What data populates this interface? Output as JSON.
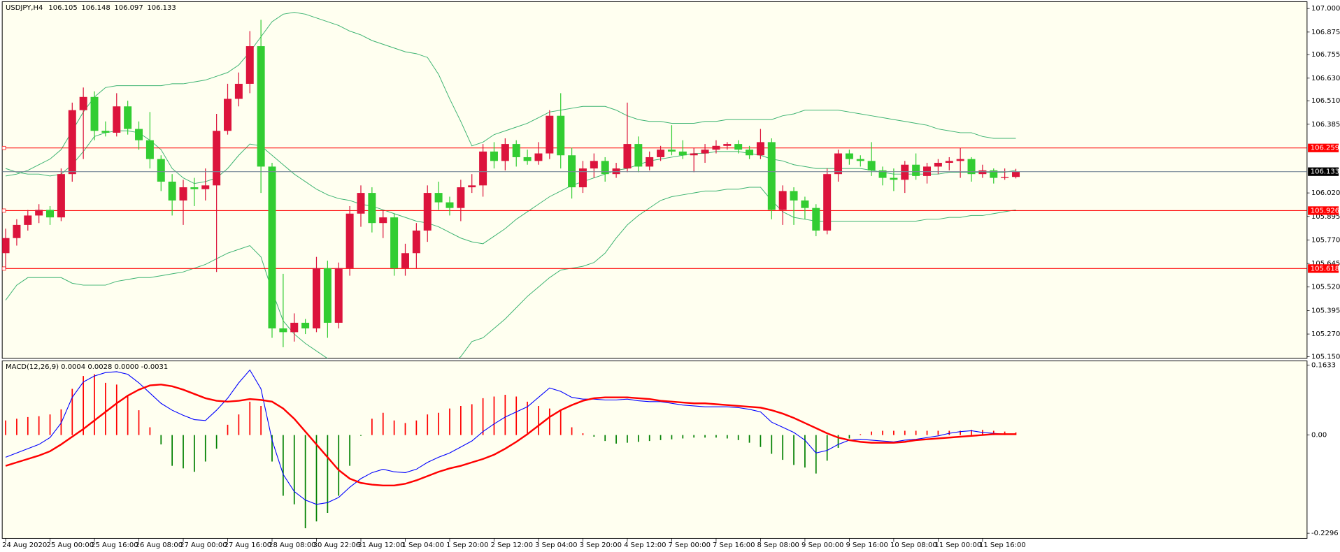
{
  "chart_data": {
    "type": "candlestick",
    "title": "USDJPY,H4",
    "categories": [
      "24 Aug 2020",
      null,
      null,
      null,
      "25 Aug 00:00",
      null,
      null,
      null,
      "25 Aug 16:00",
      null,
      null,
      null,
      "26 Aug 08:00",
      null,
      null,
      null,
      "27 Aug 00:00",
      null,
      null,
      null,
      "27 Aug 16:00",
      null,
      null,
      null,
      "28 Aug 08:00",
      null,
      null,
      null,
      "30 Aug 22:06",
      null,
      null,
      null,
      "31 Aug 12:00",
      null,
      null,
      null,
      "1 Sep 04:00",
      null,
      null,
      null,
      "1 Sep 20:00",
      null,
      null,
      null,
      "2 Sep 12:00",
      null,
      null,
      null,
      "3 Sep 04:00",
      null,
      null,
      null,
      "3 Sep 20:00",
      null,
      null,
      null,
      "4 Sep 12:00",
      null,
      null,
      null,
      "7 Sep 00:00",
      null,
      null,
      null,
      "7 Sep 16:00",
      null,
      null,
      null,
      "8 Sep 08:00",
      null,
      null,
      null,
      "9 Sep 00:00",
      null,
      null,
      null,
      "9 Sep 16:00",
      null,
      null,
      null,
      "10 Sep 08:00",
      null,
      null,
      null,
      "11 Sep 00:00",
      null,
      null,
      null,
      "11 Sep 16:00",
      null,
      null,
      null
    ],
    "ohlc": [
      [
        105.7,
        105.83,
        105.62,
        105.78
      ],
      [
        105.78,
        105.88,
        105.74,
        105.85
      ],
      [
        105.85,
        105.93,
        105.82,
        105.9
      ],
      [
        105.9,
        105.96,
        105.86,
        105.93
      ],
      [
        105.93,
        105.95,
        105.85,
        105.89
      ],
      [
        105.89,
        106.15,
        105.87,
        106.12
      ],
      [
        106.12,
        106.5,
        106.08,
        106.46
      ],
      [
        106.46,
        106.58,
        106.2,
        106.53
      ],
      [
        106.53,
        106.56,
        106.3,
        106.35
      ],
      [
        106.35,
        106.4,
        106.32,
        106.34
      ],
      [
        106.34,
        106.55,
        106.32,
        106.48
      ],
      [
        106.48,
        106.51,
        106.33,
        106.36
      ],
      [
        106.36,
        106.4,
        106.25,
        106.3
      ],
      [
        106.3,
        106.45,
        106.15,
        106.2
      ],
      [
        106.2,
        106.22,
        106.03,
        106.08
      ],
      [
        106.08,
        106.12,
        105.9,
        105.98
      ],
      [
        105.98,
        106.09,
        105.85,
        106.05
      ],
      [
        106.05,
        106.1,
        105.95,
        106.04
      ],
      [
        106.04,
        106.15,
        105.98,
        106.06
      ],
      [
        106.06,
        106.44,
        105.6,
        106.35
      ],
      [
        106.35,
        106.6,
        106.33,
        106.52
      ],
      [
        106.52,
        106.66,
        106.48,
        106.6
      ],
      [
        106.6,
        106.88,
        106.55,
        106.8
      ],
      [
        106.8,
        106.94,
        106.02,
        106.16
      ],
      [
        106.16,
        106.18,
        105.25,
        105.3
      ],
      [
        105.3,
        105.59,
        105.2,
        105.28
      ],
      [
        105.28,
        105.38,
        105.23,
        105.33
      ],
      [
        105.33,
        105.35,
        105.27,
        105.3
      ],
      [
        105.3,
        105.68,
        105.28,
        105.62
      ],
      [
        105.62,
        105.66,
        105.25,
        105.33
      ],
      [
        105.33,
        105.65,
        105.3,
        105.62
      ],
      [
        105.62,
        105.95,
        105.58,
        105.91
      ],
      [
        105.91,
        106.06,
        105.84,
        106.02
      ],
      [
        106.02,
        106.05,
        105.81,
        105.86
      ],
      [
        105.86,
        105.93,
        105.78,
        105.89
      ],
      [
        105.89,
        105.91,
        105.58,
        105.62
      ],
      [
        105.62,
        105.75,
        105.58,
        105.7
      ],
      [
        105.7,
        105.86,
        105.62,
        105.82
      ],
      [
        105.82,
        106.06,
        105.76,
        106.02
      ],
      [
        106.02,
        106.08,
        105.93,
        105.97
      ],
      [
        105.97,
        106.0,
        105.9,
        105.94
      ],
      [
        105.94,
        106.09,
        105.87,
        106.05
      ],
      [
        106.05,
        106.12,
        106.02,
        106.06
      ],
      [
        106.06,
        106.28,
        106.0,
        106.24
      ],
      [
        106.24,
        106.29,
        106.15,
        106.19
      ],
      [
        106.19,
        106.31,
        106.14,
        106.28
      ],
      [
        106.28,
        106.3,
        106.16,
        106.21
      ],
      [
        106.21,
        106.25,
        106.17,
        106.19
      ],
      [
        106.19,
        106.29,
        106.17,
        106.23
      ],
      [
        106.23,
        106.46,
        106.2,
        106.43
      ],
      [
        106.43,
        106.55,
        106.15,
        106.22
      ],
      [
        106.22,
        106.26,
        105.99,
        106.05
      ],
      [
        106.05,
        106.19,
        106.02,
        106.15
      ],
      [
        106.15,
        106.23,
        106.1,
        106.19
      ],
      [
        106.19,
        106.21,
        106.08,
        106.12
      ],
      [
        106.12,
        106.18,
        106.1,
        106.15
      ],
      [
        106.15,
        106.5,
        106.13,
        106.28
      ],
      [
        106.28,
        106.32,
        106.13,
        106.16
      ],
      [
        106.16,
        106.24,
        106.14,
        106.21
      ],
      [
        106.21,
        106.27,
        106.19,
        106.25
      ],
      [
        106.25,
        106.38,
        106.22,
        106.24
      ],
      [
        106.24,
        106.3,
        106.2,
        106.22
      ],
      [
        106.22,
        106.26,
        106.13,
        106.23
      ],
      [
        106.23,
        106.28,
        106.18,
        106.25
      ],
      [
        106.25,
        106.3,
        106.23,
        106.27
      ],
      [
        106.27,
        106.29,
        106.25,
        106.28
      ],
      [
        106.28,
        106.3,
        106.23,
        106.25
      ],
      [
        106.25,
        106.27,
        106.2,
        106.22
      ],
      [
        106.22,
        106.36,
        106.2,
        106.29
      ],
      [
        106.29,
        106.31,
        105.88,
        105.93
      ],
      [
        105.93,
        106.06,
        105.85,
        106.03
      ],
      [
        106.03,
        106.05,
        105.85,
        105.98
      ],
      [
        105.98,
        106.0,
        105.88,
        105.94
      ],
      [
        105.94,
        105.96,
        105.79,
        105.82
      ],
      [
        105.82,
        106.15,
        105.8,
        106.12
      ],
      [
        106.12,
        106.25,
        106.08,
        106.23
      ],
      [
        106.23,
        106.25,
        106.17,
        106.2
      ],
      [
        106.2,
        106.22,
        106.16,
        106.19
      ],
      [
        106.19,
        106.29,
        106.11,
        106.14
      ],
      [
        106.14,
        106.16,
        106.06,
        106.1
      ],
      [
        106.1,
        106.15,
        106.03,
        106.09
      ],
      [
        106.09,
        106.19,
        106.02,
        106.17
      ],
      [
        106.17,
        106.23,
        106.09,
        106.11
      ],
      [
        106.11,
        106.18,
        106.07,
        106.16
      ],
      [
        106.16,
        106.2,
        106.12,
        106.18
      ],
      [
        106.18,
        106.21,
        106.14,
        106.19
      ],
      [
        106.19,
        106.26,
        106.1,
        106.2
      ],
      [
        106.2,
        106.21,
        106.08,
        106.12
      ],
      [
        106.12,
        106.17,
        106.1,
        106.14
      ],
      [
        106.14,
        106.15,
        106.07,
        106.1
      ],
      [
        106.1,
        106.15,
        106.09,
        106.105
      ],
      [
        106.105,
        106.148,
        106.097,
        106.133
      ]
    ],
    "up_color": "#dc143c",
    "down_color": "#32cd32",
    "ylim": [
      105.15,
      107.0
    ],
    "yticks": [
      {
        "value": 107.0,
        "label": "107.000"
      },
      106.875,
      106.755,
      {
        "value": 106.63,
        "label": "106.630"
      },
      {
        "value": 106.51,
        "label": "106.510"
      },
      106.385,
      {
        "value": 106.02,
        "label": "106.020"
      },
      105.895,
      {
        "value": 105.77,
        "label": "105.770"
      },
      105.645,
      {
        "value": 105.52,
        "label": "105.520"
      },
      105.395,
      {
        "value": 105.27,
        "label": "105.270"
      },
      {
        "value": 105.15,
        "label": "105.150"
      }
    ],
    "bands": {
      "color": "#3cb371",
      "upper": [
        106.11,
        106.12,
        106.14,
        106.17,
        106.2,
        106.25,
        106.35,
        106.45,
        106.53,
        106.58,
        106.59,
        106.59,
        106.59,
        106.59,
        106.59,
        106.6,
        106.6,
        106.61,
        106.62,
        106.64,
        106.66,
        106.7,
        106.77,
        106.85,
        106.93,
        106.97,
        106.98,
        106.97,
        106.95,
        106.93,
        106.91,
        106.88,
        106.86,
        106.83,
        106.81,
        106.79,
        106.77,
        106.76,
        106.74,
        106.65,
        106.52,
        106.4,
        106.27,
        106.29,
        106.33,
        106.35,
        106.37,
        106.39,
        106.42,
        106.45,
        106.46,
        106.47,
        106.48,
        106.48,
        106.48,
        106.46,
        106.43,
        106.41,
        106.4,
        106.4,
        106.39,
        106.39,
        106.39,
        106.4,
        106.4,
        106.41,
        106.41,
        106.41,
        106.41,
        106.41,
        106.43,
        106.44,
        106.46,
        106.46,
        106.46,
        106.46,
        106.45,
        106.44,
        106.43,
        106.42,
        106.41,
        106.4,
        106.39,
        106.38,
        106.36,
        106.35,
        106.34,
        106.34,
        106.32,
        106.31,
        106.31,
        106.31
      ],
      "middle": [
        106.15,
        106.13,
        106.12,
        106.12,
        106.11,
        106.12,
        106.17,
        106.24,
        106.32,
        106.34,
        106.35,
        106.35,
        106.34,
        106.3,
        106.25,
        106.15,
        106.1,
        106.07,
        106.08,
        106.1,
        106.15,
        106.22,
        106.28,
        106.27,
        106.22,
        106.17,
        106.12,
        106.08,
        106.04,
        106.01,
        105.99,
        105.98,
        105.96,
        105.95,
        105.93,
        105.91,
        105.89,
        105.87,
        105.86,
        105.84,
        105.81,
        105.78,
        105.76,
        105.75,
        105.79,
        105.83,
        105.88,
        105.92,
        105.96,
        106.0,
        106.03,
        106.06,
        106.08,
        106.1,
        106.12,
        106.14,
        106.15,
        106.17,
        106.19,
        106.2,
        106.21,
        106.22,
        106.23,
        106.23,
        106.24,
        106.24,
        106.24,
        106.23,
        106.22,
        106.2,
        106.19,
        106.17,
        106.16,
        106.15,
        106.15,
        106.15,
        106.15,
        106.15,
        106.14,
        106.13,
        106.12,
        106.12,
        106.12,
        106.12,
        106.12,
        106.13,
        106.13,
        106.13,
        106.13,
        106.13,
        106.13,
        106.14
      ],
      "lower": [
        105.45,
        105.53,
        105.57,
        105.57,
        105.57,
        105.57,
        105.54,
        105.53,
        105.53,
        105.53,
        105.55,
        105.56,
        105.57,
        105.57,
        105.58,
        105.59,
        105.6,
        105.62,
        105.64,
        105.67,
        105.7,
        105.72,
        105.74,
        105.68,
        105.5,
        105.34,
        105.27,
        105.22,
        105.18,
        105.14,
        105.1,
        105.07,
        105.05,
        105.04,
        105.03,
        105.03,
        105.03,
        105.04,
        105.05,
        105.07,
        105.1,
        105.15,
        105.23,
        105.25,
        105.3,
        105.35,
        105.41,
        105.47,
        105.52,
        105.57,
        105.61,
        105.62,
        105.63,
        105.65,
        105.7,
        105.78,
        105.85,
        105.9,
        105.94,
        105.98,
        106.0,
        106.01,
        106.02,
        106.03,
        106.03,
        106.04,
        106.04,
        106.05,
        106.05,
        105.98,
        105.92,
        105.89,
        105.88,
        105.87,
        105.87,
        105.87,
        105.87,
        105.87,
        105.87,
        105.87,
        105.87,
        105.87,
        105.87,
        105.88,
        105.88,
        105.89,
        105.89,
        105.9,
        105.9,
        105.91,
        105.92,
        105.93
      ]
    },
    "levels": {
      "color": "#ff0000",
      "values": [
        106.259,
        105.926,
        105.618
      ]
    },
    "current_color": "#778899",
    "macd": {
      "title": "MACD(12,26,9) 0.0004 0.0028 0.0000 -0.0031",
      "ylim": [
        -0.2296,
        0.1633
      ],
      "yticks": [
        0.1633,
        {
          "value": 0,
          "label": "0.00"
        },
        -0.2296
      ],
      "histogram": {
        "pos_color": "#ff0000",
        "neg_color": "#008000",
        "values": [
          0.034,
          0.038,
          0.042,
          0.044,
          0.048,
          0.06,
          0.108,
          0.138,
          0.142,
          0.122,
          0.118,
          0.094,
          0.058,
          0.018,
          -0.022,
          -0.072,
          -0.078,
          -0.086,
          -0.062,
          -0.032,
          0.024,
          0.048,
          0.078,
          0.068,
          -0.062,
          -0.142,
          -0.162,
          -0.218,
          -0.202,
          -0.182,
          -0.142,
          -0.072,
          -0.002,
          0.038,
          0.052,
          0.034,
          0.028,
          0.034,
          0.048,
          0.052,
          0.062,
          0.068,
          0.072,
          0.086,
          0.09,
          0.094,
          0.09,
          0.078,
          0.068,
          0.062,
          0.058,
          0.018,
          0.004,
          -0.004,
          -0.014,
          -0.02,
          -0.018,
          -0.016,
          -0.014,
          -0.012,
          -0.01,
          -0.008,
          -0.006,
          -0.006,
          -0.006,
          -0.008,
          -0.012,
          -0.018,
          -0.028,
          -0.044,
          -0.058,
          -0.07,
          -0.076,
          -0.09,
          -0.06,
          -0.03,
          -0.008,
          0.002,
          0.008,
          0.01,
          0.01,
          0.01,
          0.01,
          0.01,
          0.01,
          0.01,
          0.01,
          0.012,
          0.012,
          0.01,
          0.008,
          0.006
        ]
      },
      "macd_line": {
        "color": "#0000ff",
        "values": [
          -0.052,
          -0.042,
          -0.032,
          -0.022,
          -0.006,
          0.028,
          0.088,
          0.124,
          0.138,
          0.146,
          0.148,
          0.142,
          0.122,
          0.098,
          0.074,
          0.058,
          0.046,
          0.036,
          0.034,
          0.058,
          0.086,
          0.122,
          0.152,
          0.108,
          -0.012,
          -0.092,
          -0.132,
          -0.152,
          -0.162,
          -0.158,
          -0.146,
          -0.122,
          -0.102,
          -0.088,
          -0.08,
          -0.086,
          -0.088,
          -0.08,
          -0.064,
          -0.052,
          -0.042,
          -0.028,
          -0.014,
          0.008,
          0.026,
          0.042,
          0.054,
          0.066,
          0.088,
          0.11,
          0.102,
          0.088,
          0.084,
          0.084,
          0.082,
          0.082,
          0.084,
          0.08,
          0.078,
          0.078,
          0.074,
          0.07,
          0.068,
          0.066,
          0.066,
          0.066,
          0.064,
          0.06,
          0.054,
          0.03,
          0.018,
          0.006,
          -0.012,
          -0.042,
          -0.036,
          -0.022,
          -0.012,
          -0.01,
          -0.012,
          -0.014,
          -0.016,
          -0.012,
          -0.01,
          -0.006,
          -0.002,
          0.004,
          0.008,
          0.01,
          0.006,
          0.004,
          0.002,
          0.002
        ]
      },
      "signal_line": {
        "color": "#ff0000",
        "values": [
          -0.072,
          -0.064,
          -0.056,
          -0.048,
          -0.038,
          -0.022,
          -0.004,
          0.014,
          0.034,
          0.054,
          0.074,
          0.092,
          0.106,
          0.116,
          0.118,
          0.114,
          0.106,
          0.096,
          0.086,
          0.08,
          0.078,
          0.08,
          0.084,
          0.082,
          0.078,
          0.062,
          0.038,
          0.008,
          -0.022,
          -0.052,
          -0.082,
          -0.102,
          -0.112,
          -0.116,
          -0.118,
          -0.118,
          -0.114,
          -0.106,
          -0.096,
          -0.086,
          -0.078,
          -0.072,
          -0.064,
          -0.056,
          -0.046,
          -0.032,
          -0.016,
          0.002,
          0.022,
          0.042,
          0.058,
          0.07,
          0.08,
          0.086,
          0.088,
          0.088,
          0.088,
          0.086,
          0.084,
          0.08,
          0.078,
          0.076,
          0.074,
          0.074,
          0.072,
          0.07,
          0.068,
          0.066,
          0.064,
          0.058,
          0.05,
          0.04,
          0.028,
          0.016,
          0.004,
          -0.006,
          -0.012,
          -0.016,
          -0.018,
          -0.018,
          -0.018,
          -0.016,
          -0.012,
          -0.01,
          -0.008,
          -0.006,
          -0.004,
          -0.002,
          0,
          0.002,
          0.002,
          0.002
        ]
      }
    }
  }
}
